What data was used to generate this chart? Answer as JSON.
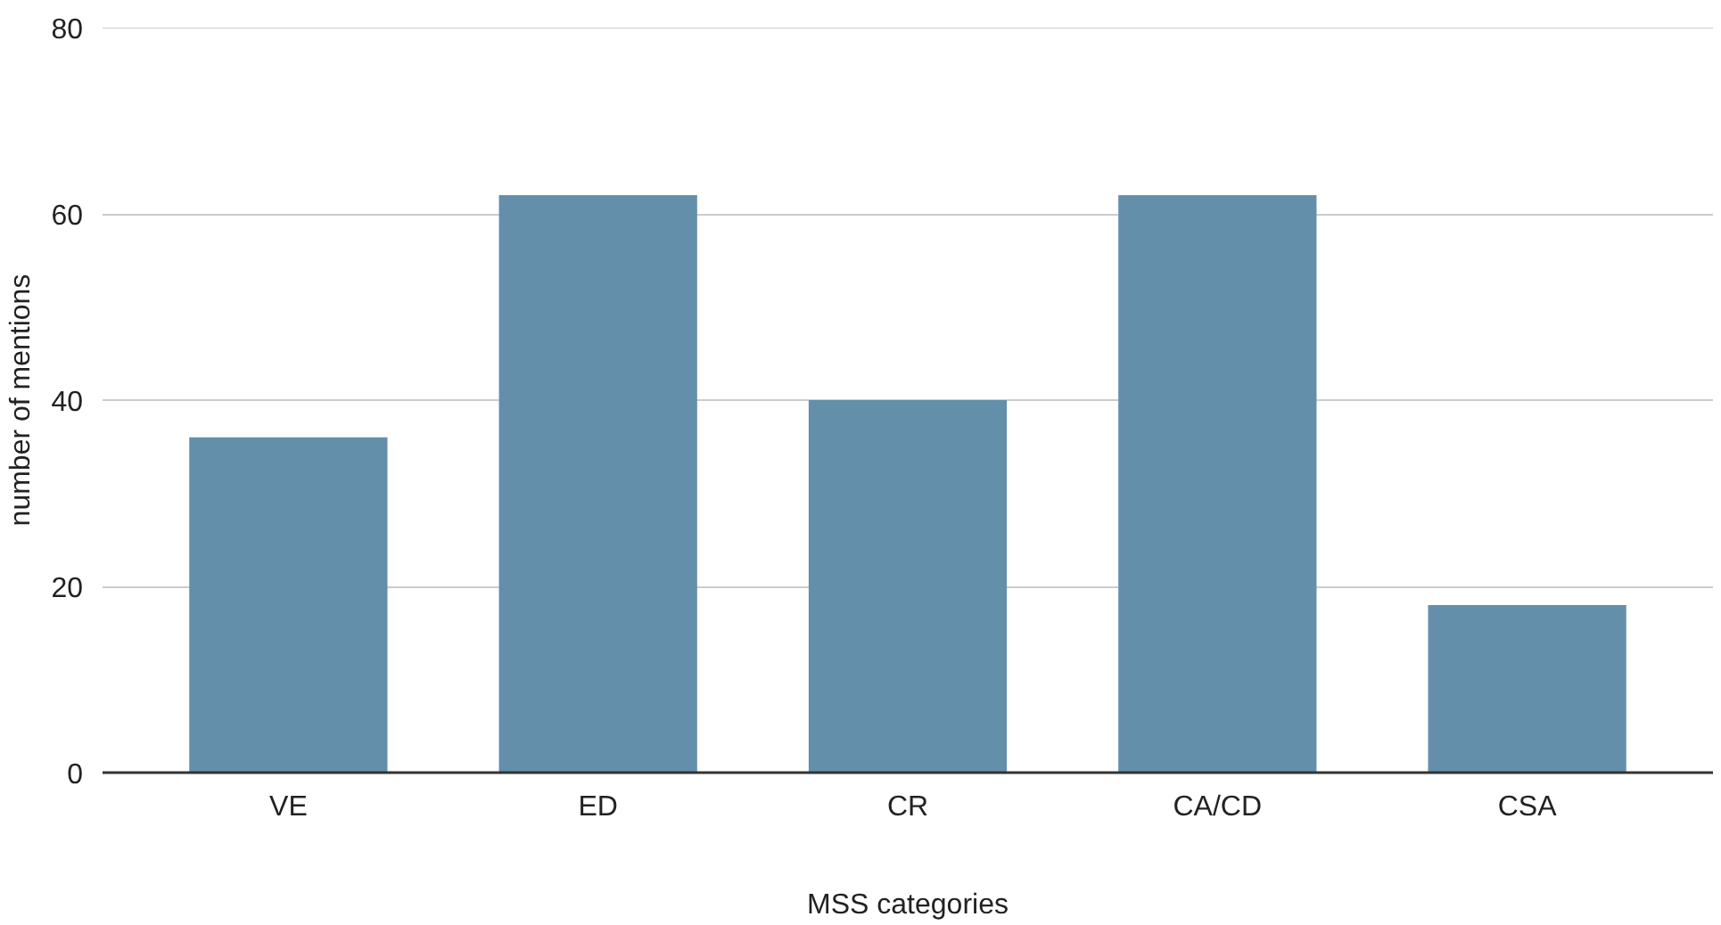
{
  "chart_data": {
    "type": "bar",
    "xlabel": "MSS categories",
    "ylabel": "number of mentions",
    "categories": [
      "VE",
      "ED",
      "CR",
      "CA/CD",
      "CSA"
    ],
    "values": [
      36,
      62,
      40,
      62,
      18
    ],
    "color": "#648fab",
    "ylim": [
      0,
      80
    ],
    "yticks": [
      0,
      20,
      40,
      60,
      80
    ],
    "grid": "y"
  }
}
